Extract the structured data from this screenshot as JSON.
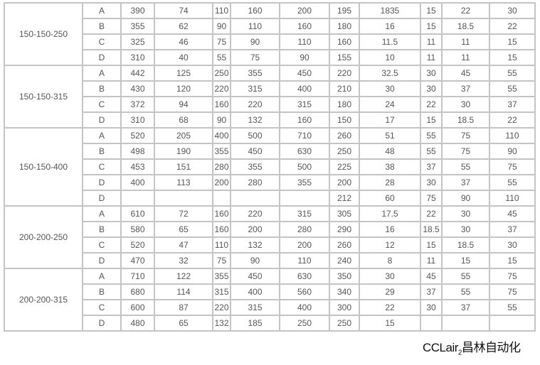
{
  "groups": [
    {
      "model": "150-150-250",
      "rows": [
        [
          "A",
          "390",
          "74",
          "110",
          "160",
          "200",
          "195",
          "1835",
          "15",
          "22",
          "30"
        ],
        [
          "B",
          "355",
          "62",
          "90",
          "110",
          "160",
          "180",
          "16",
          "15",
          "18.5",
          "22"
        ],
        [
          "C",
          "325",
          "46",
          "75",
          "90",
          "110",
          "160",
          "11.5",
          "11",
          "11",
          "15"
        ],
        [
          "D",
          "310",
          "40",
          "55",
          "75",
          "90",
          "155",
          "10",
          "11",
          "11",
          "15"
        ]
      ]
    },
    {
      "model": "150-150-315",
      "rows": [
        [
          "A",
          "442",
          "125",
          "250",
          "355",
          "450",
          "220",
          "32.5",
          "30",
          "45",
          "55"
        ],
        [
          "B",
          "430",
          "120",
          "220",
          "315",
          "400",
          "210",
          "30",
          "30",
          "37",
          "55"
        ],
        [
          "C",
          "372",
          "94",
          "160",
          "220",
          "315",
          "180",
          "24",
          "22",
          "30",
          "37"
        ],
        [
          "D",
          "310",
          "68",
          "90",
          "132",
          "160",
          "150",
          "17",
          "15",
          "18.5",
          "22"
        ]
      ]
    },
    {
      "model": "150-150-400",
      "rows": [
        [
          "A",
          "520",
          "205",
          "400",
          "500",
          "710",
          "260",
          "51",
          "55",
          "75",
          "110"
        ],
        [
          "B",
          "498",
          "190",
          "355",
          "450",
          "630",
          "250",
          "48",
          "55",
          "75",
          "90"
        ],
        [
          "C",
          "453",
          "151",
          "280",
          "355",
          "500",
          "225",
          "38",
          "37",
          "55",
          "75"
        ],
        [
          "D",
          "400",
          "113",
          "200",
          "280",
          "355",
          "200",
          "28",
          "30",
          "37",
          "55"
        ],
        [
          "D",
          "",
          "",
          "",
          "",
          "",
          "212",
          "60",
          "75",
          "90",
          "110"
        ]
      ]
    },
    {
      "model": "200-200-250",
      "rows": [
        [
          "A",
          "610",
          "72",
          "160",
          "220",
          "315",
          "305",
          "17.5",
          "22",
          "30",
          "45"
        ],
        [
          "B",
          "580",
          "65",
          "160",
          "200",
          "280",
          "290",
          "16",
          "18.5",
          "30",
          "37"
        ],
        [
          "C",
          "520",
          "47",
          "110",
          "132",
          "200",
          "260",
          "12",
          "15",
          "18.5",
          "30"
        ],
        [
          "D",
          "470",
          "32",
          "75",
          "90",
          "110",
          "240",
          "8",
          "11",
          "15",
          "15"
        ]
      ]
    },
    {
      "model": "200-200-315",
      "rows": [
        [
          "A",
          "710",
          "122",
          "355",
          "450",
          "630",
          "350",
          "30",
          "45",
          "55",
          "75"
        ],
        [
          "B",
          "680",
          "114",
          "315",
          "400",
          "560",
          "340",
          "29",
          "37",
          "55",
          "75"
        ],
        [
          "C",
          "600",
          "87",
          "220",
          "315",
          "400",
          "300",
          "22",
          "30",
          "37",
          "55"
        ],
        [
          "D",
          "480",
          "65",
          "132",
          "185",
          "250",
          "250",
          "15",
          "",
          "",
          ""
        ]
      ]
    }
  ],
  "watermark": {
    "main": "CCLair",
    "sub": "2",
    "cn": "昌林自动化"
  }
}
